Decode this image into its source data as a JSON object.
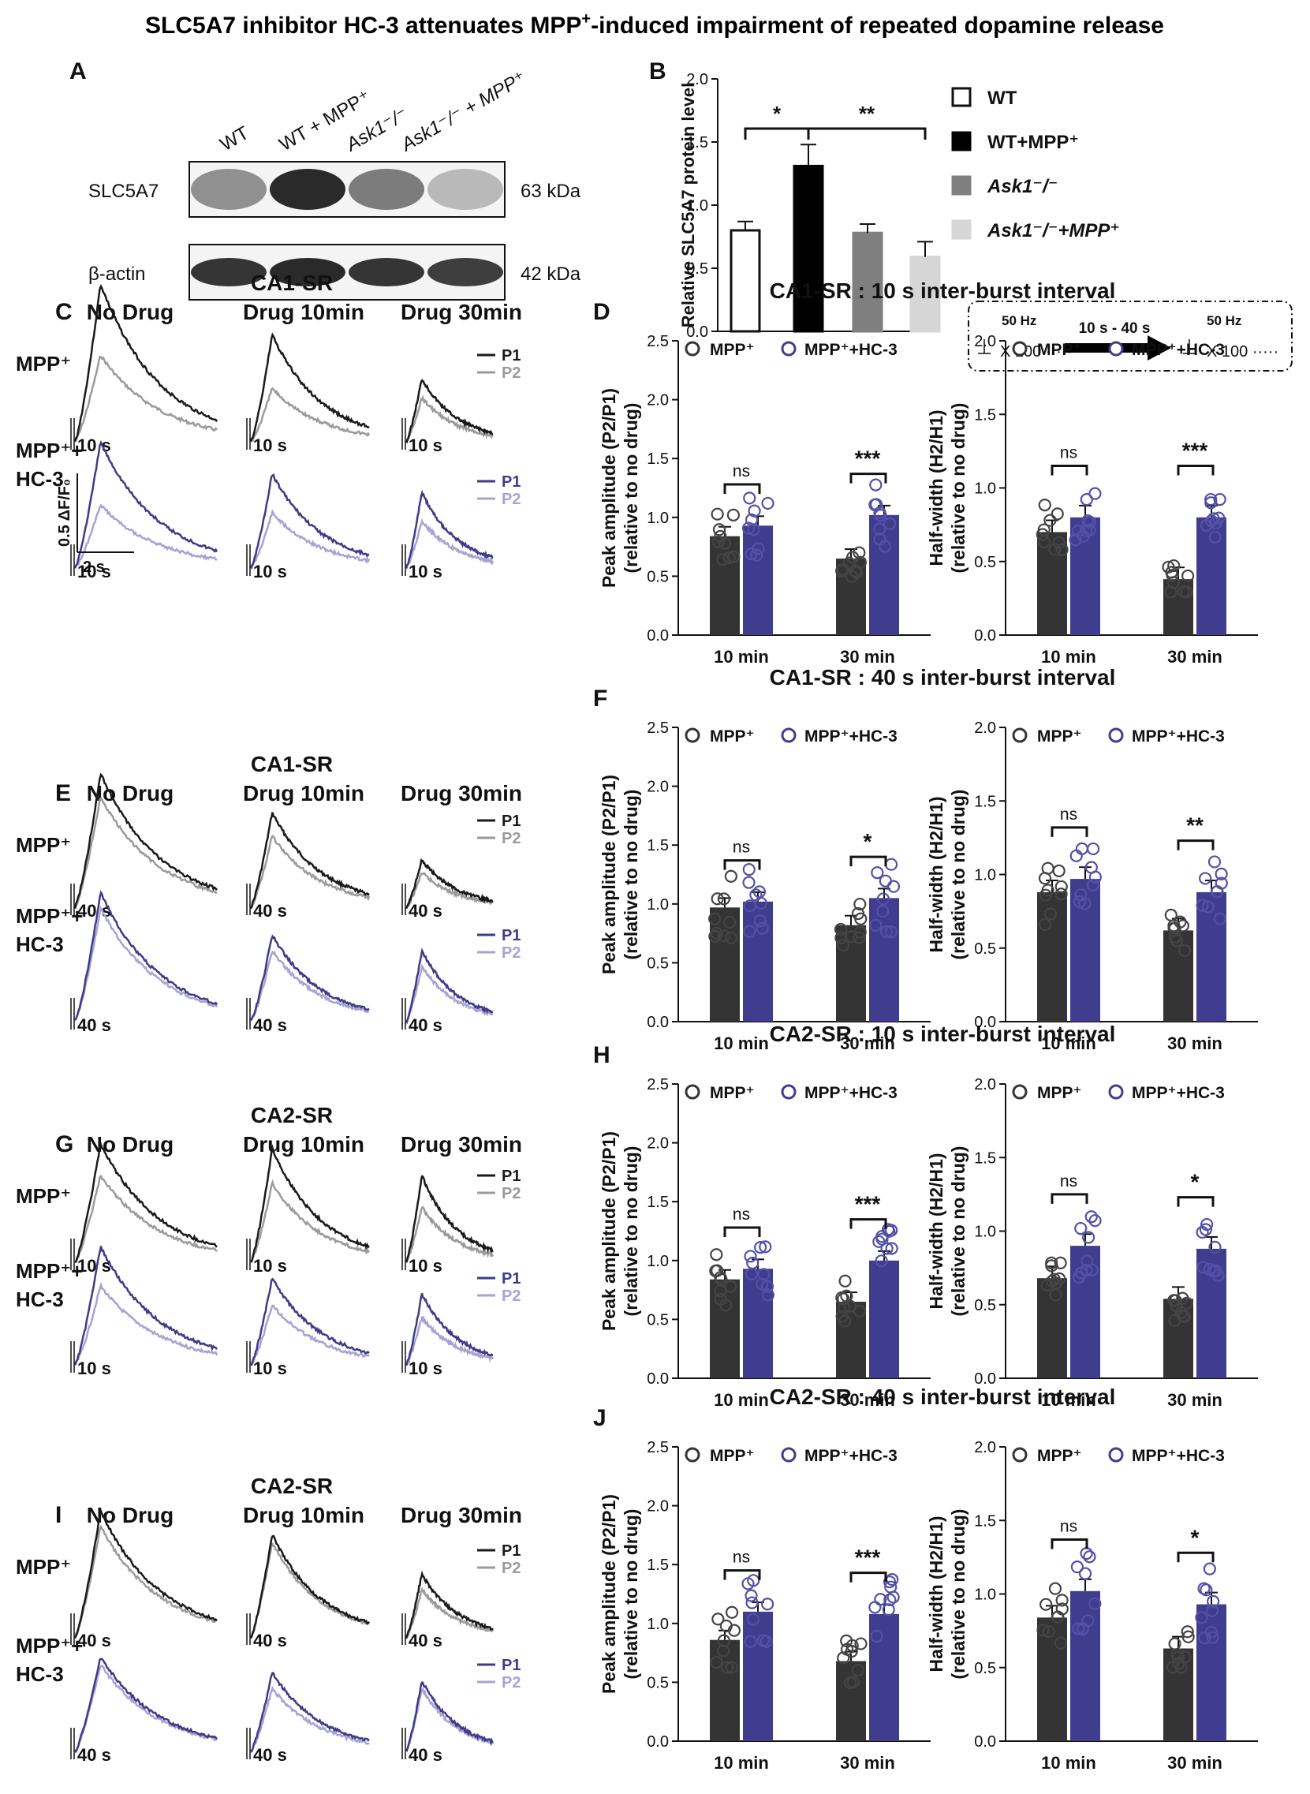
{
  "title_main": "SLC5A7 inhibitor HC-3 attenuates MPP",
  "title_sup": "+",
  "title_rest": "-induced impairment of repeated dopamine release",
  "colors": {
    "mpp": "#343434",
    "hc3": "#403d8e",
    "p1_mpp": "#1a1a1a",
    "p2_mpp": "#9b9b9b",
    "p1_hc": "#3f3b88",
    "p2_hc": "#a7a3d2",
    "wt": "#ffffff",
    "wtmpp": "#000000",
    "ask": "#7f7f7f",
    "askmpp": "#d6d6d6"
  },
  "panelA": {
    "letter": "A",
    "lanes": [
      "WT",
      "WT + MPP⁺",
      "Ask1⁻/⁻",
      "Ask1⁻/⁻ + MPP⁺"
    ],
    "rows": [
      {
        "label": "SLC5A7",
        "kda": "63 kDa",
        "intensity": [
          0.45,
          0.95,
          0.55,
          0.25
        ]
      },
      {
        "label": "β-actin",
        "kda": "42 kDa",
        "intensity": [
          0.9,
          0.95,
          0.9,
          0.85
        ]
      }
    ]
  },
  "panelB": {
    "letter": "B",
    "chart_data": {
      "type": "bar",
      "ylabel": "Relative SLC5A7 protein level",
      "ylim": [
        0,
        2.0
      ],
      "yticks": [
        "0.0",
        "0.5",
        "1.0",
        "1.5",
        "2.0"
      ],
      "categories": [
        "WT",
        "WT+MPP⁺",
        "Ask1⁻/⁻",
        "Ask1⁻/⁻+MPP⁺"
      ],
      "values": [
        0.8,
        1.31,
        0.78,
        0.59
      ],
      "errors": [
        0.07,
        0.17,
        0.07,
        0.12
      ],
      "sig": [
        "*",
        "**"
      ]
    },
    "legend": [
      "WT",
      "WT+MPP⁺",
      "Ask1⁻/⁻",
      "Ask1⁻/⁻+MPP⁺"
    ]
  },
  "protocol": {
    "f1": "50 Hz",
    "x1": "X 100 ·····",
    "interval": "10 s - 40 s",
    "f2": "50 Hz",
    "x2": "X 100 ·····"
  },
  "traces": [
    {
      "letter": "C",
      "region": "CA1-SR",
      "cols": [
        "No Drug",
        "Drug 10min",
        "Drug 30min"
      ],
      "rows": [
        "MPP⁺",
        "MPP⁺+\nHC-3"
      ],
      "interval": "10 s",
      "amps": [
        [
          1,
          0.55
        ],
        [
          0.68,
          0.34
        ],
        [
          0.4,
          0.28
        ],
        [
          0.8,
          0.4
        ],
        [
          0.6,
          0.35
        ],
        [
          0.48,
          0.3
        ]
      ],
      "scale": [
        "0.5 ΔF/F₀",
        "2 s"
      ]
    },
    {
      "letter": "E",
      "region": "CA1-SR",
      "cols": [
        "No Drug",
        "Drug 10min",
        "Drug 30min"
      ],
      "rows": [
        "MPP⁺",
        "MPP⁺+\nHC-3"
      ],
      "interval": "40 s",
      "amps": [
        [
          0.85,
          0.7
        ],
        [
          0.6,
          0.45
        ],
        [
          0.3,
          0.22
        ],
        [
          0.82,
          0.72
        ],
        [
          0.55,
          0.45
        ],
        [
          0.45,
          0.35
        ]
      ]
    },
    {
      "letter": "G",
      "region": "CA2-SR",
      "cols": [
        "No Drug",
        "Drug 10min",
        "Drug 30min"
      ],
      "rows": [
        "MPP⁺",
        "MPP⁺+\nHC-3"
      ],
      "interval": "10 s",
      "amps": [
        [
          0.75,
          0.55
        ],
        [
          0.72,
          0.5
        ],
        [
          0.55,
          0.35
        ],
        [
          0.75,
          0.5
        ],
        [
          0.55,
          0.38
        ],
        [
          0.45,
          0.3
        ]
      ]
    },
    {
      "letter": "I",
      "region": "CA2-SR",
      "cols": [
        "No Drug",
        "Drug 10min",
        "Drug 30min"
      ],
      "rows": [
        "MPP⁺",
        "MPP⁺+\nHC-3"
      ],
      "interval": "40 s",
      "amps": [
        [
          0.8,
          0.7
        ],
        [
          0.65,
          0.6
        ],
        [
          0.4,
          0.3
        ],
        [
          0.6,
          0.55
        ],
        [
          0.5,
          0.4
        ],
        [
          0.45,
          0.4
        ]
      ]
    }
  ],
  "bars": [
    {
      "letter": "D",
      "title": "CA1-SR : 10 s inter-burst interval",
      "charts": [
        {
          "ylabel": "Peak amplitude (P2/P1)",
          "ylabel2": "(relative to no drug)",
          "ymax": 2.5,
          "yticks": [
            "0.0",
            "0.5",
            "1.0",
            "1.5",
            "2.0",
            "2.5"
          ],
          "legend": [
            "MPP⁺",
            "MPP⁺+HC-3"
          ],
          "groups": [
            "10 min",
            "30 min"
          ],
          "values": [
            [
              0.84,
              0.93
            ],
            [
              0.65,
              1.02
            ]
          ],
          "sig": [
            "ns",
            "***"
          ]
        },
        {
          "ylabel": "Half-width (H2/H1)",
          "ylabel2": "(relative to no drug)",
          "ymax": 2.0,
          "yticks": [
            "0.0",
            "0.5",
            "1.0",
            "1.5",
            "2.0"
          ],
          "legend": [
            "MPP⁺",
            "MPP⁺+HC-3"
          ],
          "groups": [
            "10 min",
            "30 min"
          ],
          "values": [
            [
              0.7,
              0.8
            ],
            [
              0.38,
              0.8
            ]
          ],
          "sig": [
            "ns",
            "***"
          ]
        }
      ]
    },
    {
      "letter": "F",
      "title": "CA1-SR : 40 s inter-burst interval",
      "charts": [
        {
          "ylabel": "Peak amplitude (P2/P1)",
          "ylabel2": "(relative to no drug)",
          "ymax": 2.5,
          "yticks": [
            "0.0",
            "0.5",
            "1.0",
            "1.5",
            "2.0",
            "2.5"
          ],
          "legend": [
            "MPP⁺",
            "MPP⁺+HC-3"
          ],
          "groups": [
            "10 min",
            "30 min"
          ],
          "values": [
            [
              0.97,
              1.02
            ],
            [
              0.82,
              1.05
            ]
          ],
          "sig": [
            "ns",
            "*"
          ]
        },
        {
          "ylabel": "Half-width (H2/H1)",
          "ylabel2": "(relative to no drug)",
          "ymax": 2.0,
          "yticks": [
            "0.0",
            "0.5",
            "1.0",
            "1.5",
            "2.0"
          ],
          "legend": [
            "MPP⁺",
            "MPP⁺+HC-3"
          ],
          "groups": [
            "10 min",
            "30 min"
          ],
          "values": [
            [
              0.88,
              0.97
            ],
            [
              0.62,
              0.88
            ]
          ],
          "sig": [
            "ns",
            "**"
          ]
        }
      ]
    },
    {
      "letter": "H",
      "title": "CA2-SR : 10 s inter-burst interval",
      "charts": [
        {
          "ylabel": "Peak amplitude (P2/P1)",
          "ylabel2": "(relative to no drug)",
          "ymax": 2.5,
          "yticks": [
            "0.0",
            "0.5",
            "1.0",
            "1.5",
            "2.0",
            "2.5"
          ],
          "legend": [
            "MPP⁺",
            "MPP⁺+HC-3"
          ],
          "groups": [
            "10 min",
            "30 min"
          ],
          "values": [
            [
              0.84,
              0.93
            ],
            [
              0.65,
              1.0
            ]
          ],
          "sig": [
            "ns",
            "***"
          ]
        },
        {
          "ylabel": "Half-width (H2/H1)",
          "ylabel2": "(relative to no drug)",
          "ymax": 2.0,
          "yticks": [
            "0.0",
            "0.5",
            "1.0",
            "1.5",
            "2.0"
          ],
          "legend": [
            "MPP⁺",
            "MPP⁺+HC-3"
          ],
          "groups": [
            "10 min",
            "30 min"
          ],
          "values": [
            [
              0.68,
              0.9
            ],
            [
              0.54,
              0.88
            ]
          ],
          "sig": [
            "ns",
            "*"
          ]
        }
      ]
    },
    {
      "letter": "J",
      "title": "CA2-SR : 40 s inter-burst interval",
      "charts": [
        {
          "ylabel": "Peak amplitude (P2/P1)",
          "ylabel2": "(relative to no drug)",
          "ymax": 2.5,
          "yticks": [
            "0.0",
            "0.5",
            "1.0",
            "1.5",
            "2.0",
            "2.5"
          ],
          "legend": [
            "MPP⁺",
            "MPP⁺+HC-3"
          ],
          "groups": [
            "10 min",
            "30 min"
          ],
          "values": [
            [
              0.86,
              1.1
            ],
            [
              0.68,
              1.08
            ]
          ],
          "sig": [
            "ns",
            "***"
          ]
        },
        {
          "ylabel": "Half-width (H2/H1)",
          "ylabel2": "(relative to no drug)",
          "ymax": 2.0,
          "yticks": [
            "0.0",
            "0.5",
            "1.0",
            "1.5",
            "2.0"
          ],
          "legend": [
            "MPP⁺",
            "MPP⁺+HC-3"
          ],
          "groups": [
            "10 min",
            "30 min"
          ],
          "values": [
            [
              0.84,
              1.02
            ],
            [
              0.63,
              0.93
            ]
          ],
          "sig": [
            "ns",
            "*"
          ]
        }
      ]
    }
  ]
}
